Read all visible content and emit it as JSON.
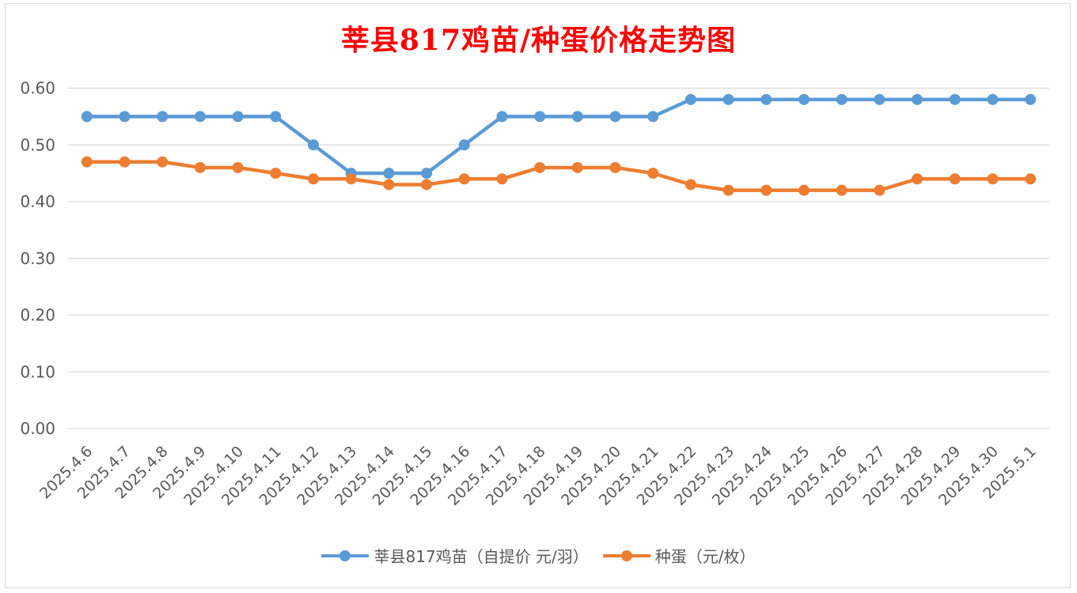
{
  "chart_data": {
    "type": "line",
    "title": "莘县817鸡苗/种蛋价格走势图",
    "categories": [
      "2025.4.6",
      "2025.4.7",
      "2025.4.8",
      "2025.4.9",
      "2025.4.10",
      "2025.4.11",
      "2025.4.12",
      "2025.4.13",
      "2025.4.14",
      "2025.4.15",
      "2025.4.16",
      "2025.4.17",
      "2025.4.18",
      "2025.4.19",
      "2025.4.20",
      "2025.4.21",
      "2025.4.22",
      "2025.4.23",
      "2025.4.24",
      "2025.4.25",
      "2025.4.26",
      "2025.4.27",
      "2025.4.28",
      "2025.4.29",
      "2025.4.30",
      "2025.5.1"
    ],
    "yticks": [
      "0.00",
      "0.10",
      "0.20",
      "0.30",
      "0.40",
      "0.50",
      "0.60"
    ],
    "ylim": [
      0,
      0.6
    ],
    "grid": true,
    "legend_position": "bottom",
    "series": [
      {
        "name": "莘县817鸡苗（自提价 元/羽）",
        "color": "#5b9bd5",
        "values": [
          0.55,
          0.55,
          0.55,
          0.55,
          0.55,
          0.55,
          0.5,
          0.45,
          0.45,
          0.45,
          0.5,
          0.55,
          0.55,
          0.55,
          0.55,
          0.55,
          0.58,
          0.58,
          0.58,
          0.58,
          0.58,
          0.58,
          0.58,
          0.58,
          0.58,
          0.58
        ]
      },
      {
        "name": "种蛋（元/枚）",
        "color": "#ed7d31",
        "values": [
          0.47,
          0.47,
          0.47,
          0.46,
          0.46,
          0.45,
          0.44,
          0.44,
          0.43,
          0.43,
          0.44,
          0.44,
          0.46,
          0.46,
          0.46,
          0.45,
          0.43,
          0.42,
          0.42,
          0.42,
          0.42,
          0.42,
          0.44,
          0.44,
          0.44,
          0.44
        ]
      }
    ]
  }
}
